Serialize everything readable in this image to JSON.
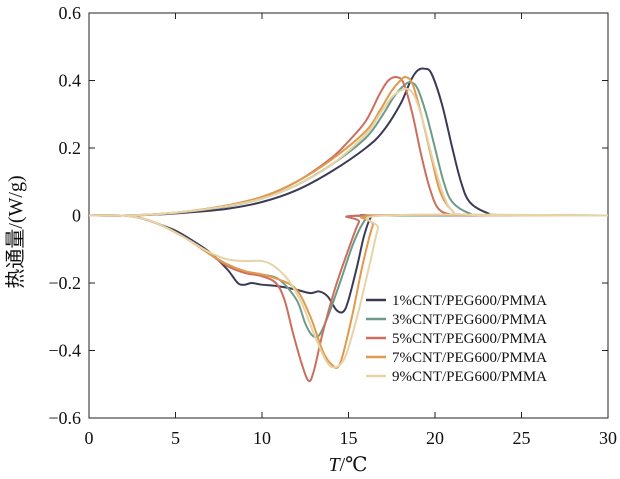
{
  "chart_data": {
    "type": "line",
    "xlabel": {
      "italic": "T",
      "rest": "/℃"
    },
    "ylabel": "热通量/(W/g)",
    "xlim": [
      0,
      30
    ],
    "ylim": [
      -0.6,
      0.6
    ],
    "xticks": [
      "0",
      "5",
      "10",
      "15",
      "20",
      "25",
      "30"
    ],
    "yticks": [
      "0.6",
      "0.4",
      "0.2",
      "0",
      "−0.2",
      "−0.4",
      "−0.6"
    ],
    "grid": false,
    "legend_position": "lower-right",
    "series": [
      {
        "name": "1%CNT/PEG600/PMMA",
        "color": "#3a3a55",
        "heating": [
          [
            0,
            0
          ],
          [
            2,
            0
          ],
          [
            4,
            0.003
          ],
          [
            6,
            0.01
          ],
          [
            8,
            0.02
          ],
          [
            10,
            0.04
          ],
          [
            12,
            0.075
          ],
          [
            14,
            0.13
          ],
          [
            16,
            0.2
          ],
          [
            17,
            0.25
          ],
          [
            18,
            0.33
          ],
          [
            18.6,
            0.4
          ],
          [
            19,
            0.43
          ],
          [
            19.4,
            0.435
          ],
          [
            19.8,
            0.42
          ],
          [
            20.4,
            0.33
          ],
          [
            21,
            0.2
          ],
          [
            21.5,
            0.1
          ],
          [
            22,
            0.04
          ],
          [
            23,
            0.008
          ],
          [
            24,
            0.001
          ],
          [
            30,
            0
          ]
        ],
        "cooling": [
          [
            0,
            0
          ],
          [
            2,
            0
          ],
          [
            3,
            -0.008
          ],
          [
            4,
            -0.025
          ],
          [
            5,
            -0.045
          ],
          [
            6,
            -0.075
          ],
          [
            7,
            -0.11
          ],
          [
            8,
            -0.16
          ],
          [
            8.6,
            -0.2
          ],
          [
            9,
            -0.205
          ],
          [
            9.4,
            -0.2
          ],
          [
            10,
            -0.205
          ],
          [
            11,
            -0.21
          ],
          [
            12,
            -0.22
          ],
          [
            12.8,
            -0.23
          ],
          [
            13.3,
            -0.225
          ],
          [
            13.8,
            -0.24
          ],
          [
            14.3,
            -0.28
          ],
          [
            14.7,
            -0.285
          ],
          [
            15,
            -0.25
          ],
          [
            15.5,
            -0.15
          ],
          [
            15.9,
            -0.06
          ],
          [
            16.3,
            -0.005
          ],
          [
            16.8,
            0
          ],
          [
            30,
            0
          ]
        ]
      },
      {
        "name": "3%CNT/PEG600/PMMA",
        "color": "#6e9a88",
        "heating": [
          [
            0,
            0
          ],
          [
            2,
            0
          ],
          [
            4,
            0.004
          ],
          [
            6,
            0.013
          ],
          [
            8,
            0.027
          ],
          [
            10,
            0.05
          ],
          [
            12,
            0.09
          ],
          [
            14,
            0.15
          ],
          [
            16,
            0.23
          ],
          [
            17,
            0.3
          ],
          [
            17.6,
            0.35
          ],
          [
            18.2,
            0.385
          ],
          [
            18.6,
            0.395
          ],
          [
            19,
            0.375
          ],
          [
            19.5,
            0.3
          ],
          [
            20,
            0.2
          ],
          [
            20.5,
            0.1
          ],
          [
            21,
            0.04
          ],
          [
            22,
            0.006
          ],
          [
            23,
            0.001
          ],
          [
            30,
            0
          ]
        ],
        "cooling": [
          [
            0,
            0
          ],
          [
            2,
            0
          ],
          [
            3,
            -0.008
          ],
          [
            4,
            -0.025
          ],
          [
            5,
            -0.05
          ],
          [
            6,
            -0.08
          ],
          [
            7,
            -0.115
          ],
          [
            8,
            -0.145
          ],
          [
            9,
            -0.165
          ],
          [
            10,
            -0.175
          ],
          [
            11,
            -0.19
          ],
          [
            12,
            -0.25
          ],
          [
            12.5,
            -0.32
          ],
          [
            12.9,
            -0.355
          ],
          [
            13.3,
            -0.355
          ],
          [
            13.8,
            -0.3
          ],
          [
            14.5,
            -0.2
          ],
          [
            15.3,
            -0.08
          ],
          [
            16,
            -0.01
          ],
          [
            16.5,
            0
          ],
          [
            30,
            0
          ]
        ]
      },
      {
        "name": "5%CNT/PEG600/PMMA",
        "color": "#cc6e5e",
        "heating": [
          [
            0,
            0
          ],
          [
            2,
            0
          ],
          [
            4,
            0.004
          ],
          [
            6,
            0.014
          ],
          [
            8,
            0.03
          ],
          [
            10,
            0.055
          ],
          [
            12,
            0.1
          ],
          [
            14,
            0.17
          ],
          [
            15,
            0.22
          ],
          [
            16,
            0.28
          ],
          [
            16.8,
            0.36
          ],
          [
            17.3,
            0.4
          ],
          [
            17.8,
            0.41
          ],
          [
            18.2,
            0.39
          ],
          [
            18.7,
            0.3
          ],
          [
            19.2,
            0.18
          ],
          [
            19.7,
            0.08
          ],
          [
            20.2,
            0.02
          ],
          [
            21,
            0.002
          ],
          [
            22,
            0
          ],
          [
            30,
            0
          ]
        ],
        "cooling": [
          [
            0,
            0
          ],
          [
            2,
            0
          ],
          [
            3,
            -0.008
          ],
          [
            4,
            -0.025
          ],
          [
            5,
            -0.05
          ],
          [
            6,
            -0.08
          ],
          [
            7,
            -0.115
          ],
          [
            8,
            -0.15
          ],
          [
            9,
            -0.17
          ],
          [
            10,
            -0.18
          ],
          [
            10.8,
            -0.2
          ],
          [
            11.3,
            -0.25
          ],
          [
            11.8,
            -0.35
          ],
          [
            12.3,
            -0.44
          ],
          [
            12.7,
            -0.49
          ],
          [
            13,
            -0.46
          ],
          [
            13.5,
            -0.35
          ],
          [
            14.2,
            -0.22
          ],
          [
            15,
            -0.1
          ],
          [
            15.6,
            -0.02
          ],
          [
            16,
            0
          ],
          [
            30,
            0
          ]
        ]
      },
      {
        "name": "7%CNT/PEG600/PMMA",
        "color": "#e09a4c",
        "heating": [
          [
            0,
            0
          ],
          [
            2,
            0
          ],
          [
            4,
            0.004
          ],
          [
            6,
            0.014
          ],
          [
            8,
            0.03
          ],
          [
            10,
            0.055
          ],
          [
            12,
            0.1
          ],
          [
            14,
            0.165
          ],
          [
            16,
            0.25
          ],
          [
            16.8,
            0.31
          ],
          [
            17.5,
            0.37
          ],
          [
            18,
            0.4
          ],
          [
            18.3,
            0.41
          ],
          [
            18.7,
            0.39
          ],
          [
            19.2,
            0.3
          ],
          [
            19.8,
            0.17
          ],
          [
            20.3,
            0.07
          ],
          [
            21,
            0.015
          ],
          [
            22,
            0.002
          ],
          [
            30,
            0
          ]
        ],
        "cooling": [
          [
            0,
            0
          ],
          [
            2,
            0
          ],
          [
            3,
            -0.008
          ],
          [
            4,
            -0.025
          ],
          [
            5,
            -0.05
          ],
          [
            6,
            -0.08
          ],
          [
            7,
            -0.115
          ],
          [
            8,
            -0.145
          ],
          [
            9,
            -0.165
          ],
          [
            10,
            -0.175
          ],
          [
            11,
            -0.19
          ],
          [
            12,
            -0.22
          ],
          [
            12.8,
            -0.3
          ],
          [
            13.5,
            -0.4
          ],
          [
            14,
            -0.44
          ],
          [
            14.5,
            -0.44
          ],
          [
            15.2,
            -0.3
          ],
          [
            15.8,
            -0.15
          ],
          [
            16.4,
            -0.03
          ],
          [
            16.8,
            0
          ],
          [
            30,
            0
          ]
        ]
      },
      {
        "name": "9%CNT/PEG600/PMMA",
        "color": "#e6d3a6",
        "heating": [
          [
            0,
            0
          ],
          [
            2,
            0
          ],
          [
            4,
            0.004
          ],
          [
            6,
            0.014
          ],
          [
            8,
            0.028
          ],
          [
            10,
            0.05
          ],
          [
            12,
            0.09
          ],
          [
            14,
            0.15
          ],
          [
            16,
            0.24
          ],
          [
            16.8,
            0.3
          ],
          [
            17.5,
            0.35
          ],
          [
            18,
            0.37
          ],
          [
            18.4,
            0.375
          ],
          [
            18.8,
            0.355
          ],
          [
            19.3,
            0.28
          ],
          [
            19.9,
            0.16
          ],
          [
            20.5,
            0.06
          ],
          [
            21,
            0.015
          ],
          [
            22,
            0.002
          ],
          [
            30,
            0
          ]
        ],
        "cooling": [
          [
            0,
            0
          ],
          [
            2,
            0
          ],
          [
            3,
            -0.008
          ],
          [
            4,
            -0.025
          ],
          [
            5,
            -0.05
          ],
          [
            6,
            -0.08
          ],
          [
            7,
            -0.11
          ],
          [
            8,
            -0.13
          ],
          [
            9,
            -0.135
          ],
          [
            10,
            -0.135
          ],
          [
            10.7,
            -0.15
          ],
          [
            11.5,
            -0.19
          ],
          [
            12.3,
            -0.26
          ],
          [
            13,
            -0.35
          ],
          [
            13.7,
            -0.43
          ],
          [
            14.2,
            -0.45
          ],
          [
            14.8,
            -0.42
          ],
          [
            15.5,
            -0.3
          ],
          [
            16.2,
            -0.15
          ],
          [
            16.7,
            -0.04
          ],
          [
            17.1,
            0
          ],
          [
            30,
            0
          ]
        ]
      }
    ]
  }
}
